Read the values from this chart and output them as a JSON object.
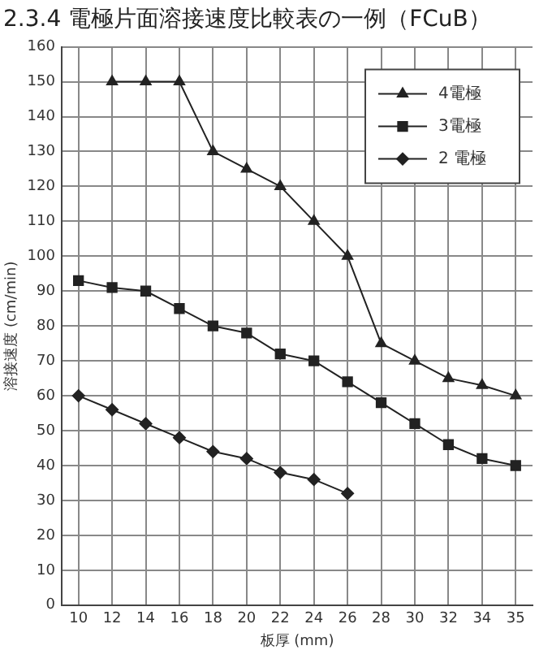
{
  "chart_data": {
    "type": "line",
    "title": "2.3.4 電極片面溶接速度比較表の一例（FCuB）",
    "xlabel": "板厚 (mm)",
    "ylabel": "溶接速度 (cm/min)",
    "categories": [
      "10",
      "12",
      "14",
      "16",
      "18",
      "20",
      "22",
      "24",
      "26",
      "28",
      "30",
      "32",
      "34",
      "35"
    ],
    "series": [
      {
        "name": "4電極",
        "color": "#222222",
        "marker": "triangle",
        "values": [
          null,
          150,
          150,
          150,
          130,
          125,
          120,
          110,
          100,
          75,
          70,
          65,
          63,
          60
        ]
      },
      {
        "name": "3電極",
        "color": "#222222",
        "marker": "square",
        "values": [
          93,
          91,
          90,
          85,
          80,
          78,
          72,
          70,
          64,
          58,
          52,
          46,
          42,
          40
        ]
      },
      {
        "name": "2 電極",
        "color": "#222222",
        "marker": "diamond",
        "values": [
          60,
          56,
          52,
          48,
          44,
          42,
          38,
          36,
          32,
          null,
          null,
          null,
          null,
          null
        ]
      }
    ],
    "ylim": [
      0,
      160
    ],
    "yticks": [
      0,
      10,
      20,
      30,
      40,
      50,
      60,
      70,
      80,
      90,
      100,
      110,
      120,
      130,
      140,
      150,
      160
    ],
    "grid": true,
    "legend": "top right",
    "line_style": "solid"
  }
}
